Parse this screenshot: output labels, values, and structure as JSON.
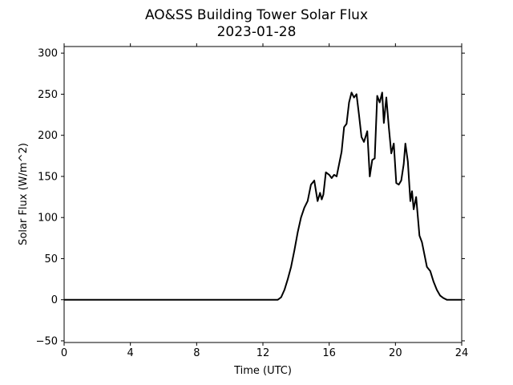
{
  "chart_data": {
    "type": "line",
    "title": "AO&SS Building Tower Solar Flux",
    "subtitle": "2023-01-28",
    "xlabel": "Time (UTC)",
    "ylabel": "Solar Flux (W/m^2)",
    "xlim": [
      0,
      24
    ],
    "ylim": [
      -52,
      308
    ],
    "xticks": [
      0,
      4,
      8,
      12,
      16,
      20,
      24
    ],
    "yticks": [
      -50,
      0,
      50,
      100,
      150,
      200,
      250,
      300
    ],
    "grid": false,
    "legend": "none",
    "series": [
      {
        "color": "#000000",
        "x": [
          0,
          12.9,
          13.1,
          13.3,
          13.5,
          13.7,
          13.9,
          14.1,
          14.3,
          14.5,
          14.7,
          14.9,
          15.1,
          15.3,
          15.45,
          15.55,
          15.65,
          15.8,
          16.0,
          16.15,
          16.3,
          16.45,
          16.6,
          16.75,
          16.9,
          17.05,
          17.2,
          17.35,
          17.5,
          17.65,
          17.8,
          17.95,
          18.1,
          18.3,
          18.45,
          18.6,
          18.75,
          18.9,
          19.05,
          19.2,
          19.3,
          19.45,
          19.6,
          19.75,
          19.9,
          20.05,
          20.2,
          20.35,
          20.5,
          20.6,
          20.75,
          20.9,
          21.0,
          21.1,
          21.25,
          21.45,
          21.6,
          21.75,
          21.9,
          22.1,
          22.3,
          22.5,
          22.7,
          22.9,
          23.1,
          23.4,
          24.0
        ],
        "y": [
          0,
          0,
          3,
          12,
          25,
          40,
          60,
          82,
          100,
          112,
          120,
          140,
          145,
          120,
          130,
          122,
          128,
          155,
          152,
          148,
          152,
          150,
          165,
          180,
          210,
          214,
          240,
          252,
          246,
          250,
          225,
          198,
          192,
          205,
          150,
          170,
          172,
          248,
          240,
          252,
          215,
          246,
          210,
          178,
          190,
          142,
          140,
          145,
          165,
          190,
          168,
          120,
          132,
          110,
          125,
          78,
          70,
          55,
          40,
          35,
          22,
          12,
          5,
          2,
          0,
          0,
          0
        ]
      }
    ]
  }
}
